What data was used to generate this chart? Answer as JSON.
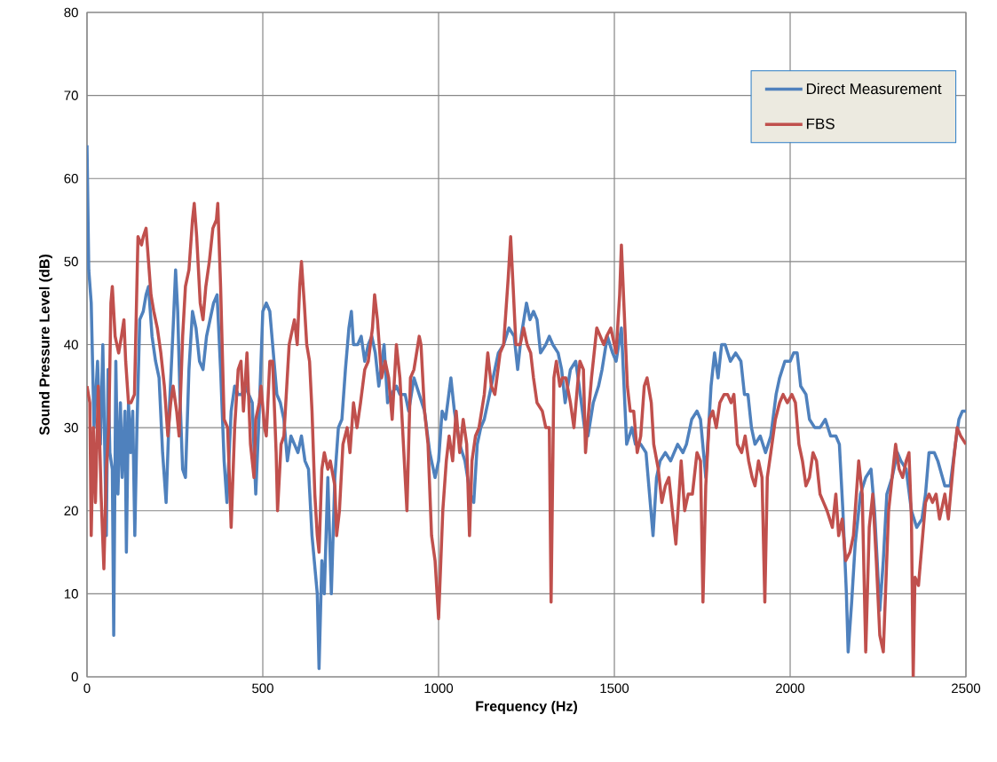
{
  "chart_data": {
    "type": "line",
    "xlabel": "Frequency (Hz)",
    "ylabel": "Sound Pressure Level (dB)",
    "xlim": [
      0,
      2500
    ],
    "ylim": [
      0,
      80
    ],
    "xticks": [
      0,
      500,
      1000,
      1500,
      2000,
      2500
    ],
    "yticks": [
      0,
      10,
      20,
      30,
      40,
      50,
      60,
      70,
      80
    ],
    "grid": true,
    "legend": "top right",
    "marker": "none",
    "line_style": "solid",
    "series": [
      {
        "name": "Direct Measurement",
        "color": "#4f81bd",
        "x": [
          0,
          5,
          12,
          20,
          30,
          38,
          45,
          55,
          60,
          65,
          72,
          76,
          82,
          88,
          95,
          100,
          108,
          112,
          118,
          124,
          130,
          136,
          142,
          150,
          160,
          168,
          175,
          185,
          195,
          205,
          215,
          225,
          235,
          245,
          252,
          258,
          265,
          272,
          280,
          290,
          300,
          310,
          320,
          330,
          340,
          350,
          360,
          370,
          380,
          390,
          398,
          410,
          420,
          430,
          440,
          450,
          460,
          470,
          480,
          490,
          500,
          510,
          520,
          530,
          540,
          550,
          560,
          570,
          580,
          590,
          600,
          610,
          620,
          630,
          640,
          655,
          660,
          668,
          675,
          685,
          695,
          705,
          715,
          725,
          735,
          745,
          752,
          758,
          770,
          780,
          790,
          800,
          810,
          820,
          830,
          845,
          855,
          865,
          880,
          890,
          905,
          915,
          930,
          945,
          960,
          975,
          990,
          1000,
          1010,
          1020,
          1035,
          1045,
          1060,
          1075,
          1090,
          1100,
          1110,
          1120,
          1130,
          1150,
          1170,
          1185,
          1200,
          1215,
          1225,
          1235,
          1250,
          1260,
          1270,
          1280,
          1290,
          1305,
          1315,
          1325,
          1340,
          1350,
          1360,
          1375,
          1390,
          1400,
          1415,
          1425,
          1440,
          1455,
          1465,
          1480,
          1495,
          1505,
          1520,
          1535,
          1550,
          1560,
          1575,
          1590,
          1600,
          1610,
          1620,
          1630,
          1645,
          1660,
          1680,
          1695,
          1705,
          1720,
          1735,
          1745,
          1760,
          1775,
          1785,
          1795,
          1805,
          1815,
          1830,
          1845,
          1860,
          1870,
          1880,
          1890,
          1900,
          1915,
          1930,
          1945,
          1960,
          1970,
          1985,
          2000,
          2010,
          2020,
          2030,
          2045,
          2055,
          2070,
          2085,
          2100,
          2115,
          2130,
          2140,
          2150,
          2160,
          2165,
          2175,
          2185,
          2200,
          2215,
          2230,
          2240,
          2255,
          2265,
          2275,
          2290,
          2305,
          2315,
          2330,
          2345,
          2360,
          2375,
          2385,
          2395,
          2410,
          2420,
          2440,
          2455,
          2470,
          2480,
          2490,
          2500
        ],
        "values": [
          64,
          49,
          45,
          30,
          38,
          28,
          40,
          17,
          37,
          27,
          25,
          5,
          38,
          22,
          33,
          24,
          32,
          15,
          33,
          27,
          32,
          17,
          30,
          43,
          44,
          46,
          47,
          41,
          38,
          36,
          27,
          21,
          33,
          42,
          49,
          44,
          33,
          25,
          24,
          37,
          44,
          42,
          38,
          37,
          41,
          43,
          45,
          46,
          37,
          26,
          21,
          32,
          35,
          34,
          34,
          35,
          34,
          33,
          22,
          32,
          44,
          45,
          44,
          39,
          34,
          33,
          31,
          26,
          29,
          28,
          27,
          29,
          26,
          25,
          17,
          10,
          1,
          14,
          10,
          24,
          10,
          24,
          30,
          31,
          37,
          42,
          44,
          40,
          40,
          41,
          38,
          40,
          41,
          39,
          35,
          40,
          33,
          34,
          35,
          34,
          34,
          32,
          36,
          34,
          32,
          27,
          24,
          26,
          32,
          31,
          36,
          32,
          28,
          26,
          22,
          21,
          28,
          30,
          31,
          35,
          39,
          40,
          42,
          41,
          37,
          41,
          45,
          43,
          44,
          43,
          39,
          40,
          41,
          40,
          39,
          37,
          33,
          37,
          38,
          35,
          30,
          29,
          33,
          35,
          37,
          41,
          39,
          38,
          42,
          28,
          30,
          28,
          28,
          27,
          22,
          17,
          24,
          26,
          27,
          26,
          28,
          27,
          28,
          31,
          32,
          31,
          24,
          35,
          39,
          36,
          40,
          40,
          38,
          39,
          38,
          34,
          34,
          30,
          28,
          29,
          27,
          29,
          34,
          36,
          38,
          38,
          39,
          39,
          35,
          34,
          31,
          30,
          30,
          31,
          29,
          29,
          28,
          20,
          10,
          3,
          9,
          16,
          22,
          24,
          25,
          20,
          8,
          14,
          22,
          24,
          27,
          26,
          25,
          20,
          18,
          19,
          22,
          27,
          27,
          26,
          23,
          23,
          28,
          31,
          32,
          32
        ]
      },
      {
        "name": "FBS",
        "color": "#c0504d",
        "x": [
          0,
          8,
          12,
          18,
          24,
          32,
          40,
          48,
          55,
          62,
          68,
          72,
          80,
          90,
          98,
          105,
          110,
          118,
          125,
          135,
          145,
          155,
          160,
          168,
          175,
          182,
          190,
          200,
          210,
          220,
          230,
          238,
          245,
          255,
          262,
          272,
          280,
          290,
          300,
          305,
          312,
          322,
          330,
          338,
          348,
          358,
          368,
          372,
          380,
          390,
          400,
          410,
          420,
          430,
          438,
          445,
          455,
          465,
          475,
          480,
          490,
          495,
          505,
          510,
          520,
          528,
          538,
          542,
          552,
          560,
          575,
          580,
          590,
          598,
          605,
          610,
          618,
          625,
          633,
          640,
          648,
          655,
          660,
          668,
          675,
          685,
          692,
          705,
          710,
          718,
          728,
          740,
          748,
          758,
          768,
          778,
          790,
          800,
          812,
          818,
          826,
          838,
          848,
          858,
          868,
          880,
          890,
          900,
          910,
          920,
          930,
          945,
          950,
          960,
          970,
          980,
          990,
          1000,
          1012,
          1022,
          1030,
          1040,
          1050,
          1060,
          1070,
          1080,
          1088,
          1095,
          1105,
          1115,
          1130,
          1140,
          1150,
          1160,
          1175,
          1185,
          1198,
          1205,
          1212,
          1220,
          1232,
          1242,
          1252,
          1262,
          1270,
          1280,
          1295,
          1305,
          1315,
          1320,
          1328,
          1335,
          1345,
          1352,
          1362,
          1375,
          1385,
          1395,
          1402,
          1412,
          1418,
          1425,
          1435,
          1450,
          1460,
          1470,
          1478,
          1490,
          1505,
          1515,
          1520,
          1528,
          1537,
          1545,
          1555,
          1565,
          1575,
          1585,
          1593,
          1605,
          1612,
          1625,
          1635,
          1645,
          1655,
          1665,
          1675,
          1690,
          1700,
          1710,
          1722,
          1735,
          1745,
          1752,
          1760,
          1770,
          1780,
          1790,
          1800,
          1812,
          1822,
          1832,
          1840,
          1850,
          1862,
          1872,
          1882,
          1892,
          1900,
          1910,
          1920,
          1928,
          1935,
          1945,
          1958,
          1970,
          1980,
          1992,
          2005,
          2015,
          2025,
          2035,
          2045,
          2055,
          2065,
          2075,
          2085,
          2095,
          2105,
          2120,
          2130,
          2138,
          2148,
          2158,
          2170,
          2180,
          2195,
          2205,
          2215,
          2225,
          2235,
          2245,
          2255,
          2265,
          2280,
          2290,
          2300,
          2310,
          2320,
          2330,
          2338,
          2345,
          2350,
          2355,
          2365,
          2375,
          2385,
          2395,
          2405,
          2415,
          2425,
          2440,
          2450,
          2465,
          2475,
          2485,
          2500
        ],
        "values": [
          35,
          33,
          17,
          30,
          21,
          35,
          22,
          13,
          25,
          30,
          45,
          47,
          41,
          39,
          41,
          43,
          38,
          33,
          33,
          34,
          53,
          52,
          53,
          54,
          50,
          46,
          44,
          42,
          39,
          35,
          29,
          33,
          35,
          32,
          29,
          41,
          47,
          49,
          55,
          57,
          53,
          45,
          43,
          47,
          50,
          54,
          55,
          57,
          47,
          31,
          30,
          18,
          30,
          37,
          38,
          32,
          39,
          28,
          24,
          31,
          33,
          35,
          30,
          29,
          38,
          38,
          27,
          20,
          28,
          29,
          40,
          41,
          43,
          40,
          47,
          50,
          45,
          40,
          38,
          32,
          22,
          17,
          15,
          25,
          27,
          25,
          26,
          23,
          17,
          20,
          28,
          30,
          27,
          33,
          30,
          33,
          37,
          38,
          42,
          46,
          43,
          36,
          38,
          36,
          31,
          40,
          36,
          28,
          20,
          36,
          37,
          41,
          40,
          32,
          28,
          17,
          14,
          7,
          20,
          26,
          29,
          26,
          32,
          27,
          31,
          28,
          17,
          26,
          29,
          30,
          34,
          39,
          35,
          34,
          39,
          40,
          48,
          53,
          47,
          40,
          40,
          42,
          40,
          39,
          36,
          33,
          32,
          30,
          30,
          9,
          36,
          38,
          35,
          36,
          36,
          33,
          30,
          35,
          38,
          37,
          27,
          31,
          36,
          42,
          41,
          40,
          41,
          42,
          39,
          46,
          52,
          44,
          35,
          32,
          32,
          27,
          29,
          35,
          36,
          33,
          28,
          25,
          21,
          23,
          24,
          20,
          16,
          26,
          20,
          22,
          22,
          27,
          26,
          9,
          23,
          31,
          32,
          30,
          33,
          34,
          34,
          33,
          34,
          28,
          27,
          29,
          26,
          24,
          23,
          26,
          24,
          9,
          24,
          27,
          31,
          33,
          34,
          33,
          34,
          33,
          28,
          26,
          23,
          24,
          27,
          26,
          22,
          21,
          20,
          18,
          22,
          17,
          19,
          14,
          15,
          17,
          26,
          22,
          3,
          18,
          22,
          14,
          5,
          3,
          20,
          24,
          28,
          25,
          24,
          26,
          27,
          19,
          0,
          12,
          11,
          16,
          21,
          22,
          21,
          22,
          19,
          22,
          19,
          26,
          30,
          29,
          28
        ]
      }
    ]
  }
}
